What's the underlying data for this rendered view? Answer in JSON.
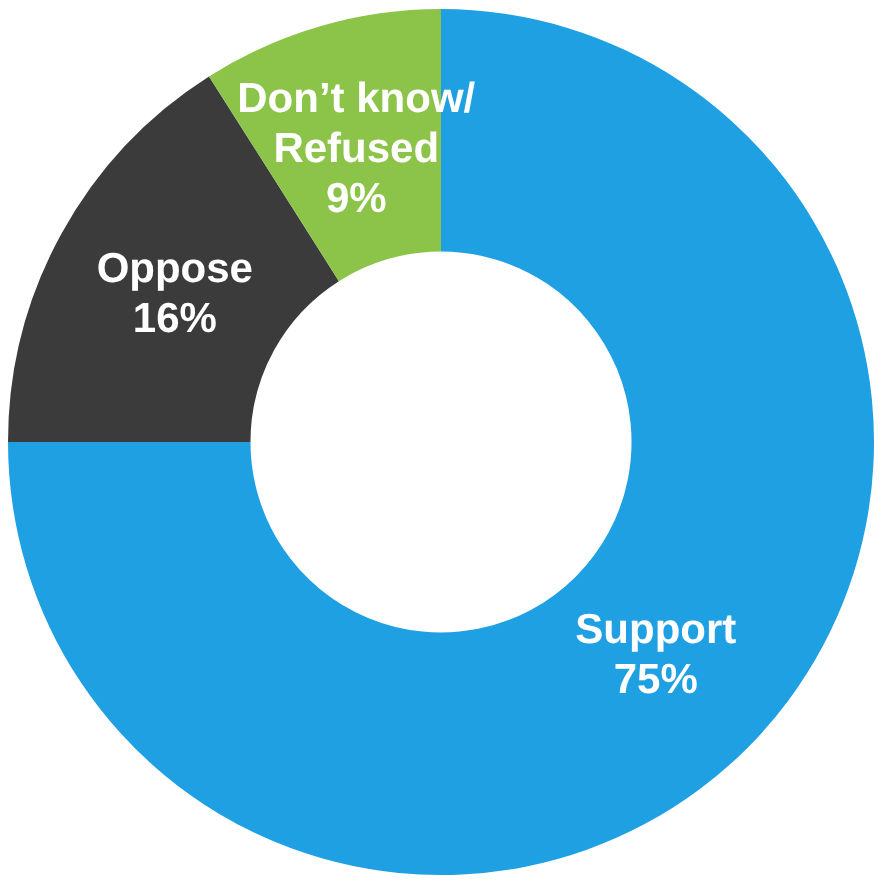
{
  "chart_data": {
    "type": "donut",
    "categories": [
      "Support",
      "Oppose",
      "Don’t know/ Refused"
    ],
    "values": [
      75,
      16,
      9
    ],
    "colors": [
      "#1ea0e2",
      "#3b3b3b",
      "#8cc44a"
    ],
    "value_labels": [
      "75%",
      "16%",
      "9%"
    ],
    "legend": false
  }
}
